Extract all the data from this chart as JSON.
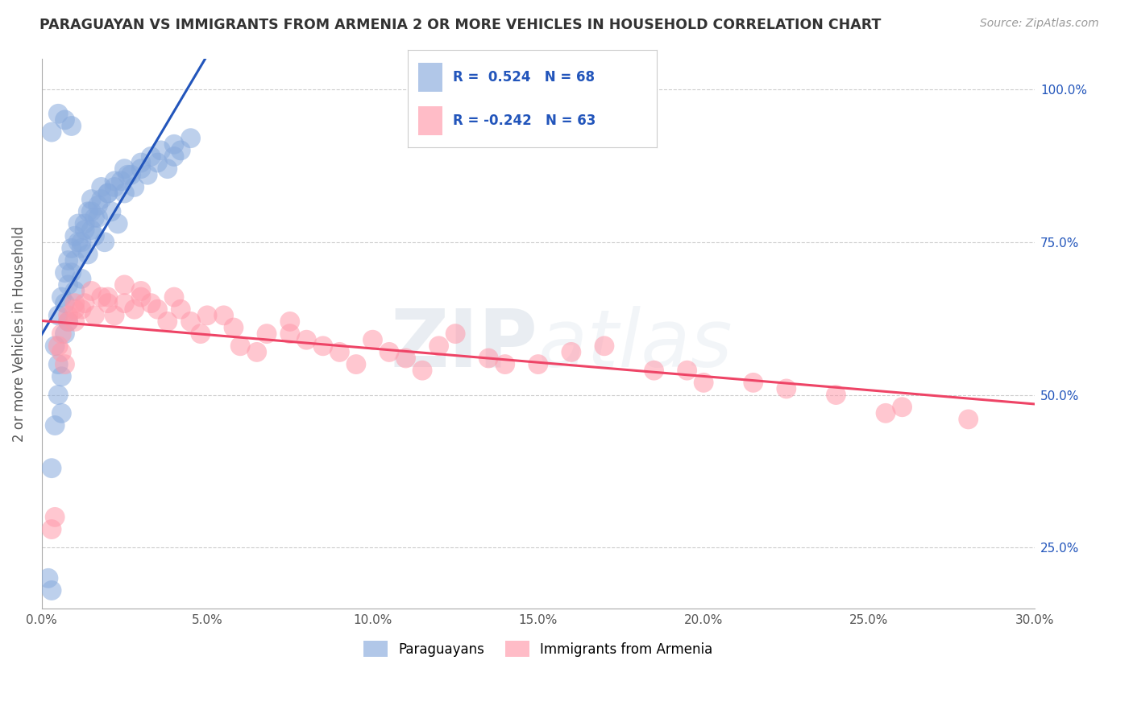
{
  "title": "PARAGUAYAN VS IMMIGRANTS FROM ARMENIA 2 OR MORE VEHICLES IN HOUSEHOLD CORRELATION CHART",
  "source": "Source: ZipAtlas.com",
  "ylabel": "2 or more Vehicles in Household",
  "xlim": [
    0.0,
    30.0
  ],
  "ylim": [
    15.0,
    105.0
  ],
  "xticks": [
    0.0,
    5.0,
    10.0,
    15.0,
    20.0,
    25.0,
    30.0
  ],
  "yticks": [
    25.0,
    50.0,
    75.0,
    100.0
  ],
  "blue_R": 0.524,
  "blue_N": 68,
  "pink_R": -0.242,
  "pink_N": 63,
  "blue_color": "#88AADD",
  "pink_color": "#FF99AA",
  "blue_line_color": "#2255BB",
  "pink_line_color": "#EE4466",
  "background_color": "#FFFFFF",
  "grid_color": "#CCCCCC",
  "watermark_color": "#AABBCC",
  "legend_label_blue": "Paraguayans",
  "legend_label_pink": "Immigrants from Armenia",
  "paraguayans_x": [
    0.2,
    0.3,
    0.3,
    0.4,
    0.5,
    0.5,
    0.6,
    0.6,
    0.7,
    0.7,
    0.8,
    0.8,
    0.9,
    1.0,
    1.0,
    1.1,
    1.2,
    1.2,
    1.3,
    1.4,
    1.5,
    1.5,
    1.6,
    1.7,
    1.8,
    1.9,
    2.0,
    2.1,
    2.2,
    2.3,
    2.4,
    2.5,
    2.6,
    2.8,
    3.0,
    3.2,
    3.5,
    3.8,
    4.0,
    4.2,
    0.4,
    0.5,
    0.6,
    0.7,
    0.8,
    0.9,
    1.0,
    1.1,
    1.2,
    1.3,
    1.4,
    1.5,
    1.6,
    1.7,
    1.8,
    2.0,
    2.2,
    2.5,
    2.7,
    3.0,
    3.3,
    3.6,
    4.0,
    4.5,
    0.3,
    0.5,
    0.7,
    0.9
  ],
  "paraguayans_y": [
    20,
    18,
    38,
    45,
    55,
    50,
    47,
    53,
    60,
    65,
    62,
    68,
    70,
    72,
    67,
    75,
    69,
    74,
    78,
    73,
    77,
    80,
    76,
    79,
    82,
    75,
    83,
    80,
    84,
    78,
    85,
    83,
    86,
    84,
    87,
    86,
    88,
    87,
    89,
    90,
    58,
    63,
    66,
    70,
    72,
    74,
    76,
    78,
    75,
    77,
    80,
    82,
    79,
    81,
    84,
    83,
    85,
    87,
    86,
    88,
    89,
    90,
    91,
    92,
    93,
    96,
    95,
    94
  ],
  "armenia_x": [
    0.3,
    0.5,
    0.6,
    0.7,
    0.8,
    1.0,
    1.0,
    1.2,
    1.5,
    1.8,
    2.0,
    2.2,
    2.5,
    2.8,
    3.0,
    3.3,
    3.8,
    4.2,
    4.8,
    5.5,
    6.0,
    6.5,
    7.5,
    8.5,
    9.5,
    10.5,
    11.5,
    12.5,
    13.5,
    15.0,
    17.0,
    18.5,
    20.0,
    25.5,
    0.4,
    0.6,
    0.8,
    1.0,
    1.3,
    1.6,
    2.0,
    2.5,
    3.0,
    3.5,
    4.0,
    4.5,
    5.0,
    5.8,
    6.8,
    7.5,
    8.0,
    9.0,
    10.0,
    11.0,
    12.0,
    14.0,
    16.0,
    19.5,
    21.5,
    22.5,
    24.0,
    26.0,
    28.0
  ],
  "armenia_y": [
    28,
    58,
    60,
    55,
    63,
    65,
    62,
    64,
    67,
    66,
    65,
    63,
    68,
    64,
    66,
    65,
    62,
    64,
    60,
    63,
    58,
    57,
    60,
    58,
    55,
    57,
    54,
    60,
    56,
    55,
    58,
    54,
    52,
    47,
    30,
    57,
    62,
    64,
    65,
    63,
    66,
    65,
    67,
    64,
    66,
    62,
    63,
    61,
    60,
    62,
    59,
    57,
    59,
    56,
    58,
    55,
    57,
    54,
    52,
    51,
    50,
    48,
    46
  ]
}
